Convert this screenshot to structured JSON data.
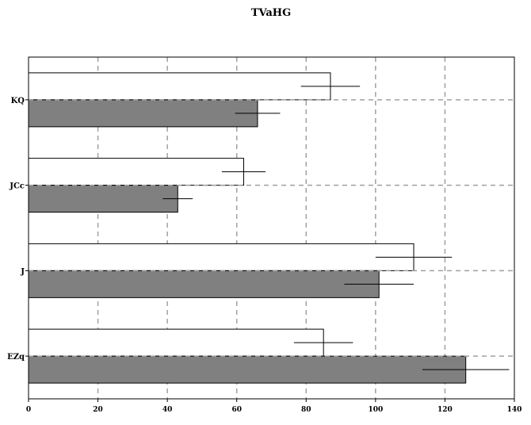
{
  "chart_data": {
    "type": "bar",
    "orientation": "horizontal",
    "title": "TVaHG",
    "xlabel": "",
    "ylabel": "",
    "categories": [
      "KQ",
      "JCc",
      "J",
      "EZq"
    ],
    "xlim": [
      0,
      140
    ],
    "xticks": [
      0,
      20,
      40,
      60,
      80,
      100,
      120,
      140
    ],
    "grid": true,
    "legend": "none",
    "series": [
      {
        "values": [
          87,
          62,
          111,
          85
        ],
        "errors": [
          8.5,
          6.3,
          11,
          8.5
        ],
        "color": "#ffffff"
      },
      {
        "values": [
          66,
          43,
          101,
          126
        ],
        "errors": [
          6.5,
          4.3,
          10,
          12.5
        ],
        "color": "#808080"
      }
    ]
  }
}
